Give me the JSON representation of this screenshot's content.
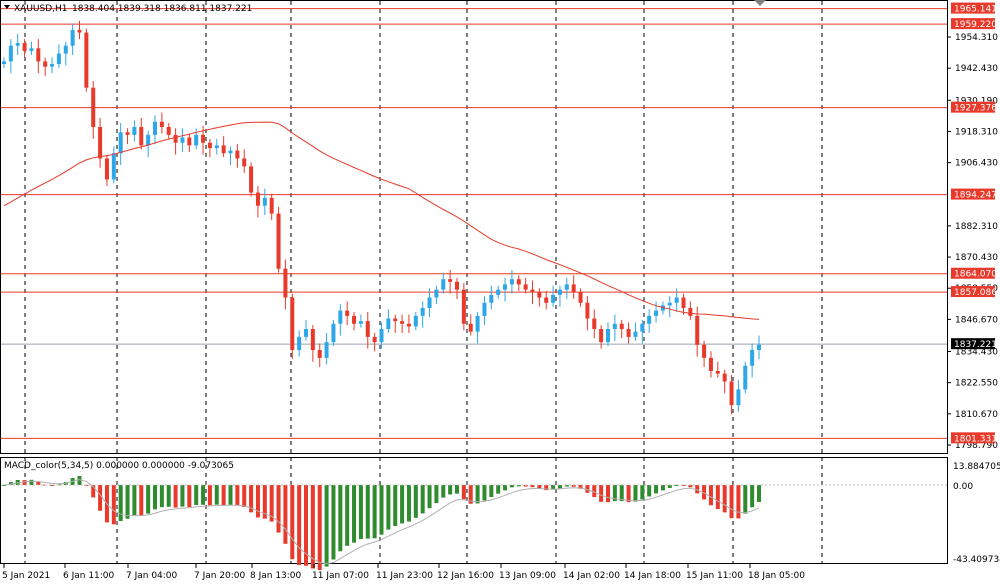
{
  "header": {
    "symbol_label": "XAUUSD,H1",
    "ohlc": "1838.404 1839.318 1836.811 1837.221",
    "arrow_icon": "triangle-down-icon"
  },
  "macd": {
    "label": "MACD_color(5,34,5) 0.000000 0.000000 -9.073065",
    "axis": [
      "13.884705",
      "0.00",
      "-43.409734"
    ]
  },
  "price_axis": [
    "1954.310",
    "1942.430",
    "1930.190",
    "1918.310",
    "1906.430",
    "1882.310",
    "1870.430",
    "1858.550",
    "1846.670",
    "1834.430",
    "1822.550",
    "1810.670",
    "1798.790"
  ],
  "price_lines": [
    {
      "label": "1965.141",
      "color": "#e8392a"
    },
    {
      "label": "1959.220",
      "color": "#e8392a"
    },
    {
      "label": "1927.376",
      "color": "#e8392a"
    },
    {
      "label": "1894.247",
      "color": "#e8392a"
    },
    {
      "label": "1864.070",
      "color": "#e8392a"
    },
    {
      "label": "1857.086",
      "color": "#e8392a"
    },
    {
      "label": "1801.331",
      "color": "#e8392a"
    }
  ],
  "current_price": {
    "label": "1837.221",
    "color": "#000000"
  },
  "time_axis": [
    "5 Jan 2021",
    "6 Jan 11:00",
    "7 Jan 04:00",
    "7 Jan 20:00",
    "8 Jan 13:00",
    "11 Jan 07:00",
    "11 Jan 23:00",
    "12 Jan 16:00",
    "13 Jan 09:00",
    "14 Jan 02:00",
    "14 Jan 18:00",
    "15 Jan 11:00",
    "18 Jan 05:00"
  ],
  "colors": {
    "bull": "#2da7e8",
    "bear": "#e8392a",
    "ma": "#e8392a",
    "hist_up": "#2e8b2e",
    "hist_down": "#e8392a",
    "signal": "#b0b0b0",
    "grid": "#000000"
  },
  "close_series": [
    1945,
    1951,
    1952,
    1949,
    1950,
    1945,
    1943,
    1944,
    1948,
    1951,
    1957,
    1956,
    1935,
    1920,
    1908,
    1900,
    1910,
    1918,
    1917,
    1920,
    1913,
    1917,
    1922,
    1920,
    1917,
    1914,
    1916,
    1913,
    1917,
    1914,
    1912,
    1913,
    1910,
    1911,
    1908,
    1905,
    1895,
    1890,
    1893,
    1887,
    1866,
    1855,
    1835,
    1840,
    1843,
    1835,
    1832,
    1838,
    1845,
    1850,
    1848,
    1845,
    1846,
    1840,
    1838,
    1843,
    1847,
    1846,
    1845,
    1844,
    1848,
    1851,
    1855,
    1858,
    1862,
    1861,
    1858,
    1845,
    1842,
    1848,
    1853,
    1856,
    1858,
    1860,
    1862,
    1860,
    1858,
    1857,
    1855,
    1853,
    1856,
    1858,
    1860,
    1857,
    1853,
    1847,
    1843,
    1838,
    1843,
    1845,
    1843,
    1840,
    1842,
    1845,
    1848,
    1850,
    1852,
    1853,
    1855,
    1851,
    1848,
    1837,
    1832,
    1827,
    1826,
    1823,
    1814,
    1820,
    1829,
    1835,
    1837
  ]
}
